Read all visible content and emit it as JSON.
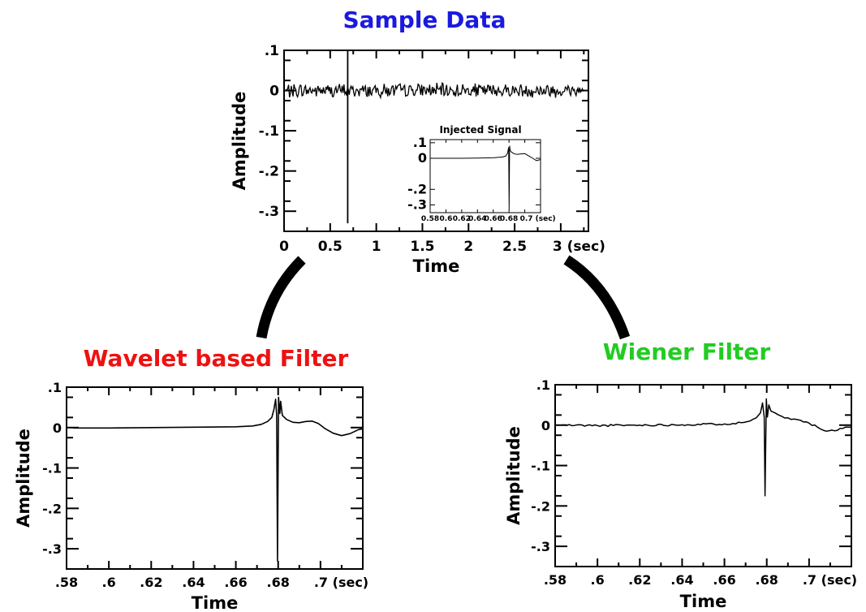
{
  "titles": {
    "sample": "Sample Data",
    "wavelet": "Wavelet based Filter",
    "wiener": "Wiener Filter"
  },
  "colors": {
    "sample_title": "#1a1adf",
    "wavelet_title": "#ee1111",
    "wiener_title": "#22cc22",
    "line": "#000000"
  },
  "chart_data": [
    {
      "id": "sample",
      "type": "line",
      "title": "Sample Data",
      "xlabel": "Time",
      "ylabel": "Amplitude",
      "xlim": [
        0,
        3.3
      ],
      "ylim": [
        -0.35,
        0.1
      ],
      "xticks": [
        0,
        0.5,
        1,
        1.5,
        2,
        2.5,
        3
      ],
      "xtick_labels": [
        "0",
        "0.5",
        "1",
        "1.5",
        "2",
        "2.5",
        "3 (sec)"
      ],
      "yticks": [
        0.1,
        0,
        -0.1,
        -0.2,
        -0.3
      ],
      "ytick_labels": [
        ".1",
        "0",
        "-.1",
        "-.2",
        "-.3"
      ],
      "series": [
        {
          "noise_band": {
            "x_start": 0.02,
            "x_end": 3.25,
            "amplitude": 0.02
          },
          "spike": {
            "x": 0.69,
            "max": 0.1,
            "min": -0.33
          }
        }
      ],
      "inset": {
        "title": "Injected Signal",
        "xlim": [
          0.58,
          0.72
        ],
        "ylim": [
          -0.35,
          0.12
        ],
        "xticks": [
          0.58,
          0.6,
          0.62,
          0.64,
          0.66,
          0.68,
          0.7
        ],
        "xtick_labels": [
          "0.58",
          "0.6",
          "0.62",
          "0.64",
          "0.66",
          "0.68",
          "0.7 (sec)"
        ],
        "yticks": [
          0.1,
          0,
          -0.2,
          -0.3
        ],
        "ytick_labels": [
          ".1",
          "0",
          "-.2",
          "-.3"
        ],
        "points": [
          [
            0.58,
            0.0
          ],
          [
            0.6,
            0.0
          ],
          [
            0.62,
            0.0
          ],
          [
            0.64,
            0.001
          ],
          [
            0.66,
            0.003
          ],
          [
            0.672,
            0.008
          ],
          [
            0.676,
            0.015
          ],
          [
            0.678,
            0.03
          ],
          [
            0.6795,
            0.07
          ],
          [
            0.6802,
            -0.33
          ],
          [
            0.6808,
            0.08
          ],
          [
            0.6815,
            0.05
          ],
          [
            0.683,
            0.04
          ],
          [
            0.686,
            0.03
          ],
          [
            0.69,
            0.025
          ],
          [
            0.695,
            0.028
          ],
          [
            0.7,
            0.03
          ],
          [
            0.705,
            0.015
          ],
          [
            0.71,
            0.0
          ],
          [
            0.715,
            -0.015
          ],
          [
            0.72,
            -0.008
          ]
        ]
      }
    },
    {
      "id": "wavelet",
      "type": "line",
      "title": "Wavelet based Filter",
      "xlabel": "Time",
      "ylabel": "Amplitude",
      "xlim": [
        0.58,
        0.72
      ],
      "ylim": [
        -0.35,
        0.1
      ],
      "xticks": [
        0.58,
        0.6,
        0.62,
        0.64,
        0.66,
        0.68,
        0.7
      ],
      "xtick_labels": [
        ".58",
        ".6",
        ".62",
        ".64",
        ".66",
        ".68",
        ".7 (sec)"
      ],
      "yticks": [
        0.1,
        0,
        -0.1,
        -0.2,
        -0.3
      ],
      "ytick_labels": [
        ".1",
        "0",
        "-.1",
        "-.2",
        "-.3"
      ],
      "points": [
        [
          0.583,
          -0.001
        ],
        [
          0.6,
          -0.001
        ],
        [
          0.62,
          0.0
        ],
        [
          0.64,
          0.001
        ],
        [
          0.66,
          0.002
        ],
        [
          0.668,
          0.004
        ],
        [
          0.672,
          0.008
        ],
        [
          0.675,
          0.015
        ],
        [
          0.677,
          0.025
        ],
        [
          0.678,
          0.045
        ],
        [
          0.6788,
          0.07
        ],
        [
          0.6793,
          0.03
        ],
        [
          0.6797,
          -0.33
        ],
        [
          0.6802,
          0.075
        ],
        [
          0.6808,
          0.035
        ],
        [
          0.6812,
          0.065
        ],
        [
          0.682,
          0.03
        ],
        [
          0.684,
          0.02
        ],
        [
          0.687,
          0.013
        ],
        [
          0.69,
          0.012
        ],
        [
          0.693,
          0.015
        ],
        [
          0.696,
          0.016
        ],
        [
          0.699,
          0.01
        ],
        [
          0.702,
          -0.002
        ],
        [
          0.706,
          -0.014
        ],
        [
          0.71,
          -0.02
        ],
        [
          0.714,
          -0.015
        ],
        [
          0.718,
          -0.005
        ],
        [
          0.72,
          -0.003
        ]
      ]
    },
    {
      "id": "wiener",
      "type": "line",
      "title": "Wiener Filter",
      "xlabel": "Time",
      "ylabel": "Amplitude",
      "xlim": [
        0.58,
        0.72
      ],
      "ylim": [
        -0.35,
        0.1
      ],
      "xticks": [
        0.58,
        0.6,
        0.62,
        0.64,
        0.66,
        0.68,
        0.7
      ],
      "xtick_labels": [
        ".58",
        ".6",
        ".62",
        ".64",
        ".66",
        ".68",
        ".7 (sec)"
      ],
      "yticks": [
        0.1,
        0,
        -0.1,
        -0.2,
        -0.3
      ],
      "ytick_labels": [
        ".1",
        "0",
        "-.1",
        "-.2",
        "-.3"
      ],
      "points": [
        [
          0.583,
          0.0
        ],
        [
          0.6,
          -0.001
        ],
        [
          0.62,
          0.0
        ],
        [
          0.64,
          0.001
        ],
        [
          0.66,
          0.003
        ],
        [
          0.668,
          0.006
        ],
        [
          0.672,
          0.01
        ],
        [
          0.675,
          0.018
        ],
        [
          0.677,
          0.03
        ],
        [
          0.678,
          0.055
        ],
        [
          0.6788,
          0.02
        ],
        [
          0.6792,
          -0.175
        ],
        [
          0.6798,
          0.065
        ],
        [
          0.6803,
          0.02
        ],
        [
          0.681,
          0.05
        ],
        [
          0.682,
          0.035
        ],
        [
          0.684,
          0.03
        ],
        [
          0.687,
          0.022
        ],
        [
          0.69,
          0.018
        ],
        [
          0.693,
          0.015
        ],
        [
          0.696,
          0.012
        ],
        [
          0.7,
          0.005
        ],
        [
          0.704,
          -0.005
        ],
        [
          0.708,
          -0.015
        ],
        [
          0.712,
          -0.014
        ],
        [
          0.716,
          -0.008
        ],
        [
          0.72,
          -0.005
        ]
      ]
    }
  ]
}
